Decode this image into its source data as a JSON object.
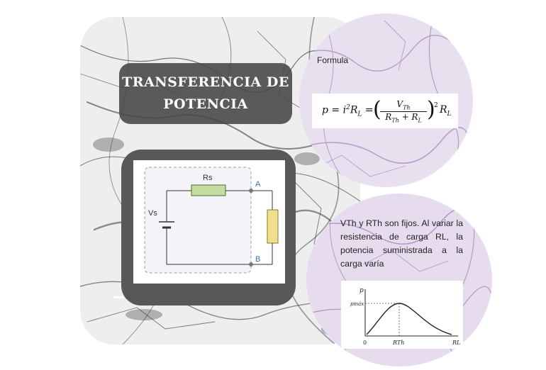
{
  "title": {
    "line1": "TRANSFERENCIA DE",
    "line2": "POTENCIA"
  },
  "circuit": {
    "rs_label": "Rs",
    "vs_label": "Vs",
    "node_a": "A",
    "node_b": "B"
  },
  "formula": {
    "label": "Formula",
    "lhs": "p = i",
    "sq": "2",
    "rl": "R",
    "sub_L": "L",
    "eq": "=",
    "num": "V",
    "num_sub": "Th",
    "den_r": "R",
    "den_sub": "Th",
    "den_plus": " + R",
    "den_sub2": "L",
    "power": "2",
    "tail": "R",
    "tail_sub": "L"
  },
  "description": "VTh y RTh son fijos. Al variar la resistencia de carga RL, la potencia suministrada a la carga varía",
  "graph": {
    "y_label": "p",
    "pmax": "pmáx",
    "zero": "0",
    "x_tick": "RTh",
    "x_label": "RL"
  },
  "colors": {
    "circle_tint": "#c9b3d6",
    "frame": "#585858",
    "title_bg": "#464646",
    "resistor_green": "#c7dca0",
    "load_yellow": "#f1df8e"
  }
}
